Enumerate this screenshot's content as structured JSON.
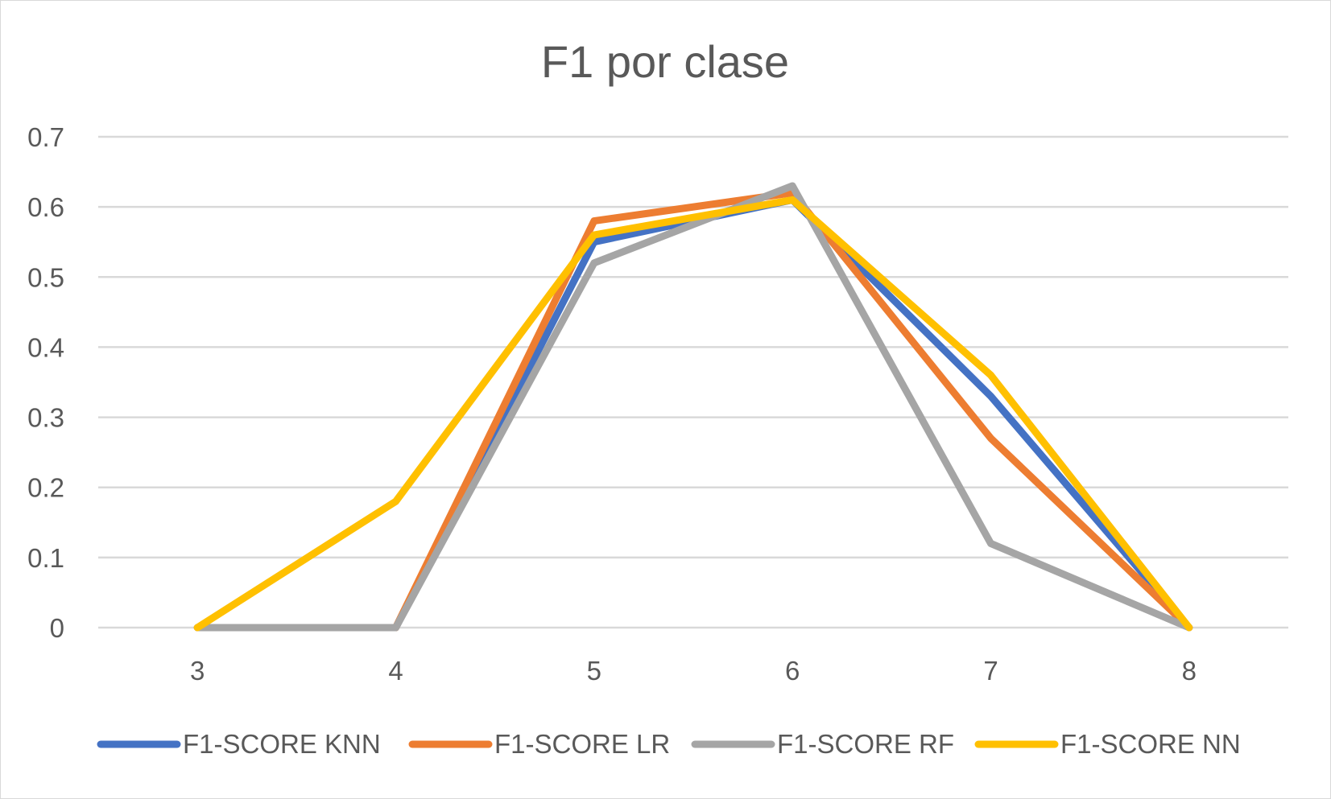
{
  "chart_data": {
    "type": "line",
    "title": "F1 por clase",
    "xlabel": "",
    "ylabel": "",
    "x": [
      "3",
      "4",
      "5",
      "6",
      "7",
      "8"
    ],
    "ylim": [
      0,
      0.7
    ],
    "yticks": [
      "0",
      "0.1",
      "0.2",
      "0.3",
      "0.4",
      "0.5",
      "0.6",
      "0.7"
    ],
    "grid": true,
    "legend": "bottom",
    "series": [
      {
        "name": "F1-SCORE KNN",
        "color": "#4472c4",
        "values": [
          0,
          0,
          0.55,
          0.61,
          0.33,
          0
        ]
      },
      {
        "name": "F1-SCORE LR",
        "color": "#ed7d31",
        "values": [
          0,
          0,
          0.58,
          0.62,
          0.27,
          0
        ]
      },
      {
        "name": "F1-SCORE RF",
        "color": "#a5a5a5",
        "values": [
          0,
          0,
          0.52,
          0.63,
          0.12,
          0
        ]
      },
      {
        "name": "F1-SCORE NN",
        "color": "#ffc000",
        "values": [
          0,
          0.18,
          0.56,
          0.61,
          0.36,
          0
        ]
      }
    ]
  }
}
